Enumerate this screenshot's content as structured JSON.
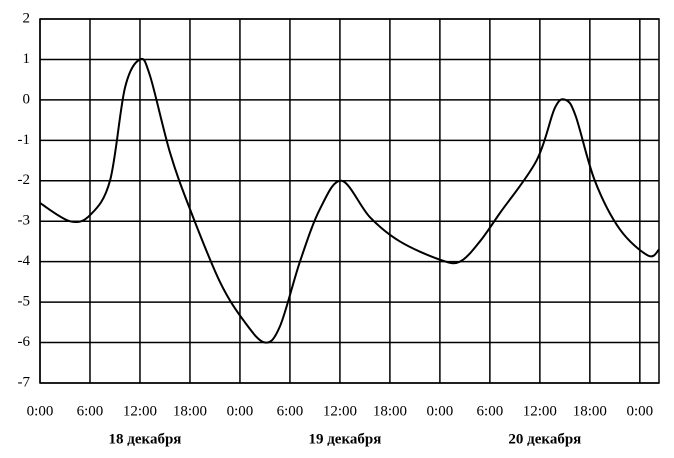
{
  "chart_data": {
    "type": "line",
    "x": [
      0,
      3.6,
      6,
      8.4,
      10.2,
      12,
      13.2,
      15.6,
      18,
      21.6,
      24.6,
      27,
      28.8,
      31.2,
      33.6,
      36.2,
      39.6,
      43.2,
      48,
      50.4,
      52.8,
      55.2,
      59.6,
      61.8,
      63.1,
      64.3,
      66.6,
      69.6,
      73,
      74.3
    ],
    "series": [
      {
        "color": "#000000",
        "values": [
          -2.55,
          -3.0,
          -2.85,
          -2.0,
          0.3,
          1.0,
          0.6,
          -1.3,
          -2.7,
          -4.5,
          -5.5,
          -6.0,
          -5.6,
          -4.0,
          -2.7,
          -2.0,
          -2.9,
          -3.5,
          -3.95,
          -4.0,
          -3.5,
          -2.8,
          -1.5,
          -0.2,
          0.0,
          -0.4,
          -2.0,
          -3.2,
          -3.85,
          -3.7
        ]
      }
    ],
    "xlim": [
      0,
      74.3
    ],
    "xticks": [
      {
        "value": 0,
        "label": "0:00"
      },
      {
        "value": 6,
        "label": "6:00"
      },
      {
        "value": 12,
        "label": "12:00"
      },
      {
        "value": 18,
        "label": "18:00"
      },
      {
        "value": 24,
        "label": "0:00"
      },
      {
        "value": 30,
        "label": "6:00"
      },
      {
        "value": 36,
        "label": "12:00"
      },
      {
        "value": 42,
        "label": "18:00"
      },
      {
        "value": 48,
        "label": "0:00"
      },
      {
        "value": 54,
        "label": "6:00"
      },
      {
        "value": 60,
        "label": "12:00"
      },
      {
        "value": 66,
        "label": "18:00"
      },
      {
        "value": 72,
        "label": "0:00"
      }
    ],
    "ylim": [
      -7,
      2
    ],
    "yticks": [
      -7,
      -6,
      -5,
      -4,
      -3,
      -2,
      -1,
      0,
      1,
      2
    ],
    "grid": true,
    "day_labels": [
      "18 декабря",
      "19 декабря",
      "20 декабря"
    ]
  }
}
